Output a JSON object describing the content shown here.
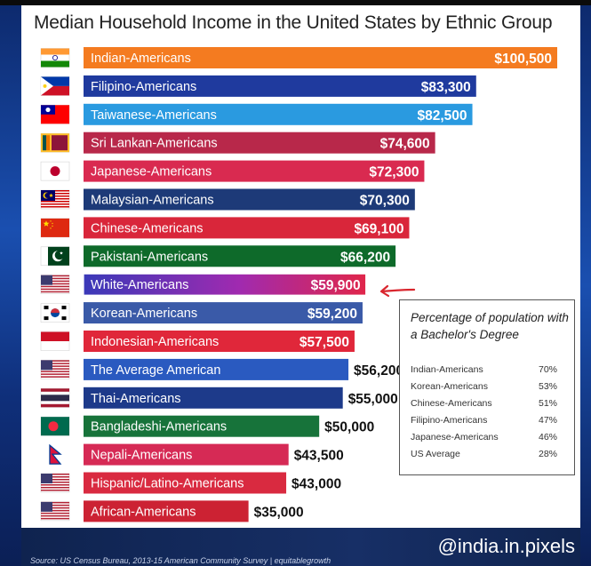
{
  "title": "Median Household Income in the United States  by Ethnic Group",
  "chart_data": {
    "type": "bar",
    "orientation": "horizontal",
    "categories": [
      "Indian-Americans",
      "Filipino-Americans",
      "Taiwanese-Americans",
      "Sri Lankan-Americans",
      "Japanese-Americans",
      "Malaysian-Americans",
      "Chinese-Americans",
      "Pakistani-Americans",
      "White-Americans",
      "Korean-Americans",
      "Indonesian-Americans",
      "The Average American",
      "Thai-Americans",
      "Bangladeshi-Americans",
      "Nepali-Americans",
      "Hispanic/Latino-Americans",
      "African-Americans"
    ],
    "values": [
      100500,
      83300,
      82500,
      74600,
      72300,
      70300,
      69100,
      66200,
      59900,
      59200,
      57500,
      56200,
      55000,
      50000,
      43500,
      43000,
      35000
    ],
    "value_labels": [
      "$100,500",
      "$83,300",
      "$82,500",
      "$74,600",
      "$72,300",
      "$70,300",
      "$69,100",
      "$66,200",
      "$59,900",
      "$59,200",
      "$57,500",
      "$56,200",
      "$55,000",
      "$50,000",
      "$43,500",
      "$43,000",
      "$35,000"
    ],
    "bar_colors": [
      "#f47b20",
      "#1f3a9e",
      "#2a9ae0",
      "#b8284a",
      "#d92a50",
      "#1d3a78",
      "#d9263a",
      "#0e6a2a",
      "#7a2fb0",
      "#3a5aa8",
      "#e0273a",
      "#2a5ac0",
      "#1d3a8a",
      "#17733a",
      "#d62a55",
      "#d92a40",
      "#cc2233"
    ],
    "highlight": "White-Americans",
    "xlim": [
      0,
      100500
    ],
    "grid": false,
    "legend": "none"
  },
  "flags": [
    "india-flag",
    "philippines-flag",
    "taiwan-flag",
    "sri-lanka-flag",
    "japan-flag",
    "malaysia-flag",
    "china-flag",
    "pakistan-flag",
    "usa-flag",
    "south-korea-flag",
    "indonesia-flag",
    "usa-flag",
    "thailand-flag",
    "bangladesh-flag",
    "nepal-flag",
    "usa-flag",
    "usa-flag"
  ],
  "bachelor_box": {
    "title": "Percentage of population with a Bachelor's Degree",
    "rows": [
      {
        "name": "Indian-Americans",
        "value": "70%"
      },
      {
        "name": "Korean-Americans",
        "value": "53%"
      },
      {
        "name": "Chinese-Americans",
        "value": "51%"
      },
      {
        "name": "Filipino-Americans",
        "value": "47%"
      },
      {
        "name": "Japanese-Americans",
        "value": "46%"
      },
      {
        "name": "US Average",
        "value": "28%"
      }
    ]
  },
  "footer": {
    "source": "Source: US Census Bureau, 2013-15 American Community Survey | equitablegrowth",
    "handle": "@india.in.pixels"
  },
  "colors": {
    "title": "#222222",
    "highlight_arrow": "#d9262e"
  }
}
